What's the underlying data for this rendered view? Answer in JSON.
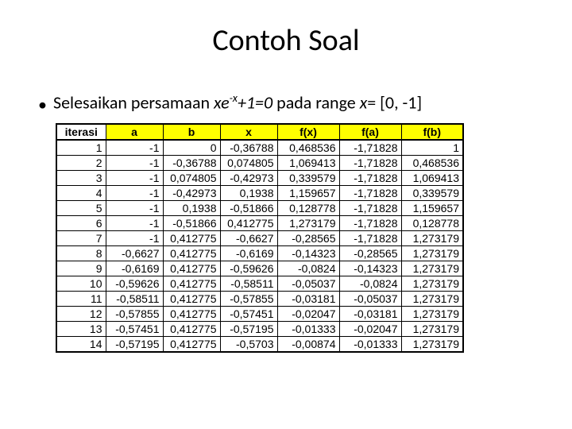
{
  "title": "Contoh Soal",
  "bullet": {
    "prefix": "•",
    "text_before": "Selesaikan persamaan ",
    "eq_part1": "xe",
    "eq_sup": "-x",
    "eq_part2": "+1=0",
    "text_mid": " pada range ",
    "var": "x",
    "text_after": "= [0, -1]"
  },
  "table": {
    "headers": [
      "iterasi",
      "a",
      "b",
      "x",
      "f(x)",
      "f(a)",
      "f(b)"
    ],
    "header_highlight": [
      false,
      true,
      true,
      true,
      true,
      true,
      true
    ],
    "rows": [
      [
        "1",
        "-1",
        "0",
        "-0,36788",
        "0,468536",
        "-1,71828",
        "1"
      ],
      [
        "2",
        "-1",
        "-0,36788",
        "0,074805",
        "1,069413",
        "-1,71828",
        "0,468536"
      ],
      [
        "3",
        "-1",
        "0,074805",
        "-0,42973",
        "0,339579",
        "-1,71828",
        "1,069413"
      ],
      [
        "4",
        "-1",
        "-0,42973",
        "0,1938",
        "1,159657",
        "-1,71828",
        "0,339579"
      ],
      [
        "5",
        "-1",
        "0,1938",
        "-0,51866",
        "0,128778",
        "-1,71828",
        "1,159657"
      ],
      [
        "6",
        "-1",
        "-0,51866",
        "0,412775",
        "1,273179",
        "-1,71828",
        "0,128778"
      ],
      [
        "7",
        "-1",
        "0,412775",
        "-0,6627",
        "-0,28565",
        "-1,71828",
        "1,273179"
      ],
      [
        "8",
        "-0,6627",
        "0,412775",
        "-0,6169",
        "-0,14323",
        "-0,28565",
        "1,273179"
      ],
      [
        "9",
        "-0,6169",
        "0,412775",
        "-0,59626",
        "-0,0824",
        "-0,14323",
        "1,273179"
      ],
      [
        "10",
        "-0,59626",
        "0,412775",
        "-0,58511",
        "-0,05037",
        "-0,0824",
        "1,273179"
      ],
      [
        "11",
        "-0,58511",
        "0,412775",
        "-0,57855",
        "-0,03181",
        "-0,05037",
        "1,273179"
      ],
      [
        "12",
        "-0,57855",
        "0,412775",
        "-0,57451",
        "-0,02047",
        "-0,03181",
        "1,273179"
      ],
      [
        "13",
        "-0,57451",
        "0,412775",
        "-0,57195",
        "-0,01333",
        "-0,02047",
        "1,273179"
      ],
      [
        "14",
        "-0,57195",
        "0,412775",
        "-0,5703",
        "-0,00874",
        "-0,01333",
        "1,273179"
      ]
    ]
  }
}
